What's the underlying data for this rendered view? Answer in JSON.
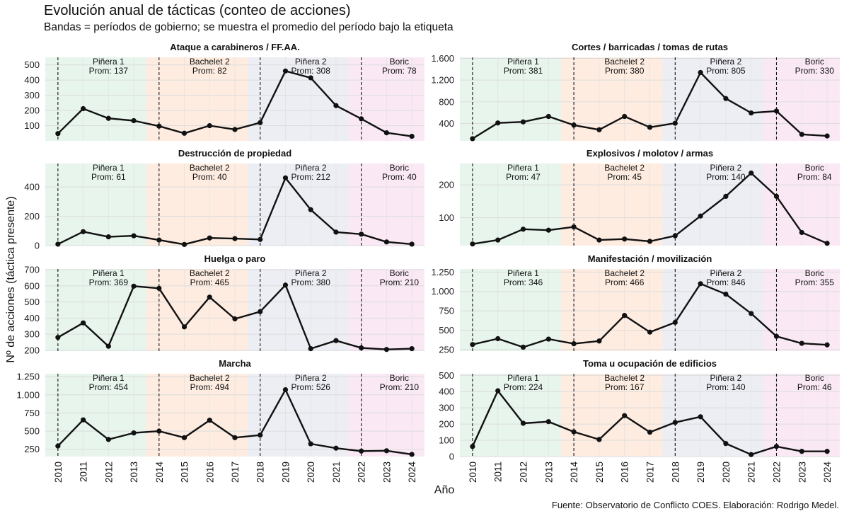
{
  "title": "Evolución anual de tácticas (conteo de acciones)",
  "subtitle": "Bandas = períodos de gobierno; se muestra el promedio del período bajo la etiqueta",
  "caption": "Fuente: Observatorio de Conflicto COES. Elaboración: Rodrigo Medel.",
  "chart_data": {
    "type": "line",
    "xlabel": "Año",
    "ylabel": "Nº de acciones (táctica presente)",
    "years": [
      2010,
      2011,
      2012,
      2013,
      2014,
      2015,
      2016,
      2017,
      2018,
      2019,
      2020,
      2021,
      2022,
      2023,
      2024
    ],
    "periods": [
      {
        "name": "Piñera 1",
        "start": 2010,
        "end": 2014,
        "color": "#dff1e7"
      },
      {
        "name": "Bachelet 2",
        "start": 2014,
        "end": 2018,
        "color": "#fde6d6"
      },
      {
        "name": "Piñera 2",
        "start": 2018,
        "end": 2022,
        "color": "#e7e8f0"
      },
      {
        "name": "Boric",
        "start": 2022,
        "end": 2025,
        "color": "#f8e1f1"
      }
    ],
    "panels": [
      {
        "title": "Ataque a carabineros / FF.AA.",
        "values": [
          48,
          212,
          148,
          133,
          97,
          50,
          100,
          75,
          120,
          460,
          415,
          232,
          145,
          53,
          30
        ],
        "ylim": [
          0,
          550
        ],
        "yticks": [
          100,
          200,
          300,
          400,
          500
        ],
        "tick_labels": [
          "100",
          "200",
          "300",
          "400",
          "500"
        ],
        "period_means": [
          "Prom: 137",
          "Prom: 82",
          "Prom: 308",
          "Prom: 78"
        ]
      },
      {
        "title": "Cortes / barricadas / tomas de rutas",
        "values": [
          120,
          410,
          430,
          530,
          370,
          285,
          530,
          330,
          405,
          1340,
          860,
          595,
          630,
          200,
          170
        ],
        "ylim": [
          80,
          1620
        ],
        "yticks": [
          400,
          800,
          1200,
          1600
        ],
        "tick_labels": [
          "400",
          "800",
          "1.200",
          "1.600"
        ],
        "period_means": [
          "Prom: 381",
          "Prom: 380",
          "Prom: 805",
          "Prom: 330"
        ]
      },
      {
        "title": "Destrucción de propiedad",
        "values": [
          10,
          95,
          60,
          67,
          38,
          8,
          52,
          48,
          42,
          462,
          245,
          92,
          78,
          25,
          10
        ],
        "ylim": [
          0,
          560
        ],
        "yticks": [
          0,
          200,
          400
        ],
        "tick_labels": [
          "0",
          "200",
          "400"
        ],
        "period_means": [
          "Prom: 61",
          "Prom: 40",
          "Prom: 212",
          "Prom: 40"
        ]
      },
      {
        "title": "Explosivos / molotov / armas",
        "values": [
          20,
          32,
          65,
          62,
          72,
          32,
          35,
          28,
          45,
          105,
          165,
          236,
          165,
          55,
          22
        ],
        "ylim": [
          15,
          265
        ],
        "yticks": [
          100,
          200
        ],
        "tick_labels": [
          "100",
          "200"
        ],
        "period_means": [
          "Prom: 47",
          "Prom: 45",
          "Prom: 140",
          "Prom: 84"
        ]
      },
      {
        "title": "Huelga o paro",
        "values": [
          280,
          370,
          225,
          598,
          585,
          345,
          530,
          395,
          440,
          605,
          210,
          260,
          215,
          205,
          210
        ],
        "ylim": [
          195,
          705
        ],
        "yticks": [
          200,
          300,
          400,
          500,
          600,
          700
        ],
        "tick_labels": [
          "200",
          "300",
          "400",
          "500",
          "600",
          "700"
        ],
        "period_means": [
          "Prom: 369",
          "Prom: 465",
          "Prom: 380",
          "Prom: 210"
        ]
      },
      {
        "title": "Manifestación / movilización",
        "values": [
          315,
          390,
          280,
          385,
          325,
          360,
          690,
          475,
          600,
          1100,
          965,
          715,
          420,
          330,
          310
        ],
        "ylim": [
          230,
          1290
        ],
        "yticks": [
          250,
          500,
          750,
          1000,
          1250
        ],
        "tick_labels": [
          "250",
          "500",
          "750",
          "1.000",
          "1.250"
        ],
        "period_means": [
          "Prom: 346",
          "Prom: 466",
          "Prom: 846",
          "Prom: 355"
        ]
      },
      {
        "title": "Marcha",
        "values": [
          295,
          655,
          385,
          475,
          500,
          410,
          650,
          410,
          445,
          1070,
          325,
          265,
          225,
          230,
          180
        ],
        "ylim": [
          150,
          1290
        ],
        "yticks": [
          250,
          500,
          750,
          1000,
          1250
        ],
        "tick_labels": [
          "250",
          "500",
          "750",
          "1.000",
          "1.250"
        ],
        "period_means": [
          "Prom: 454",
          "Prom: 494",
          "Prom: 526",
          "Prom: 210"
        ]
      },
      {
        "title": "Toma u ocupación de edificios",
        "values": [
          62,
          405,
          205,
          215,
          152,
          105,
          252,
          150,
          210,
          245,
          80,
          12,
          62,
          32,
          32
        ],
        "ylim": [
          0,
          510
        ],
        "yticks": [
          0,
          100,
          200,
          300,
          400,
          500
        ],
        "tick_labels": [
          "0",
          "100",
          "200",
          "300",
          "400",
          "500"
        ],
        "period_means": [
          "Prom: 224",
          "Prom: 167",
          "Prom: 140",
          "Prom: 46"
        ]
      }
    ]
  }
}
